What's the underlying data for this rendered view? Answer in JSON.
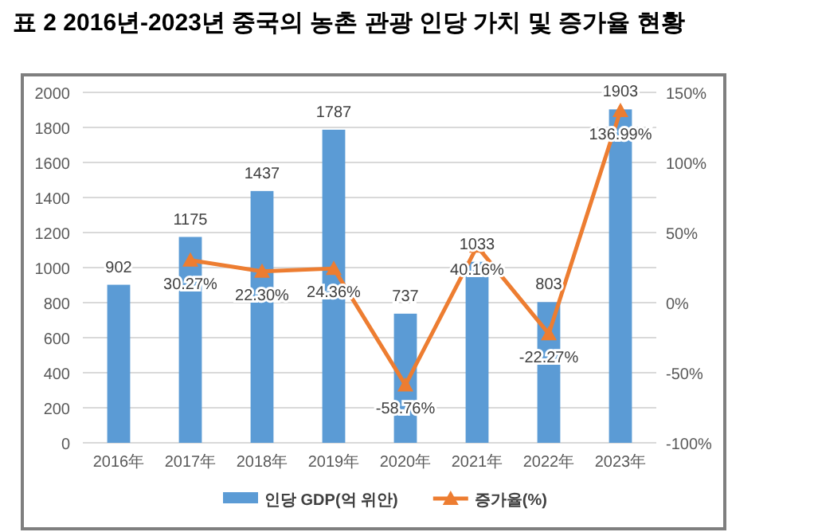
{
  "chart_data": {
    "type": "bar",
    "title": "표 2 2016년-2023년 중국의 농촌 관광 인당 가치 및 증가율 현황",
    "categories": [
      "2016年",
      "2017年",
      "2018年",
      "2019年",
      "2020年",
      "2021年",
      "2022年",
      "2023年"
    ],
    "series": [
      {
        "name": "인당 GDP(억 위안)",
        "color": "#5b9bd5",
        "values": [
          902,
          1175,
          1437,
          1787,
          737,
          1033,
          803,
          1903
        ],
        "value_labels": [
          "902",
          "1175",
          "1437",
          "1787",
          "737",
          "1033",
          "803",
          "1903"
        ]
      },
      {
        "name": "증가율(%)",
        "type": "line",
        "axis": "y2",
        "color": "#ed7d31",
        "marker": "triangle",
        "values": [
          null,
          30.27,
          22.3,
          24.36,
          -58.76,
          40.16,
          -22.27,
          136.99
        ],
        "value_labels": [
          null,
          "30.27%",
          "22.30%",
          "24.36%",
          "-58.76%",
          "40.16%",
          "-22.27%",
          "136.99%"
        ]
      }
    ],
    "ylim": [
      0,
      2000
    ],
    "yticks": [
      0,
      200,
      400,
      600,
      800,
      1000,
      1200,
      1400,
      1600,
      1800,
      2000
    ],
    "y2lim": [
      -100,
      150
    ],
    "y2ticks": [
      {
        "value": -100,
        "label": "-100%"
      },
      {
        "value": -50,
        "label": "-50%"
      },
      {
        "value": 0,
        "label": "0%"
      },
      {
        "value": 50,
        "label": "50%"
      },
      {
        "value": 100,
        "label": "100%"
      },
      {
        "value": 150,
        "label": "150%"
      }
    ],
    "grid": "y",
    "legend": "bottom"
  }
}
